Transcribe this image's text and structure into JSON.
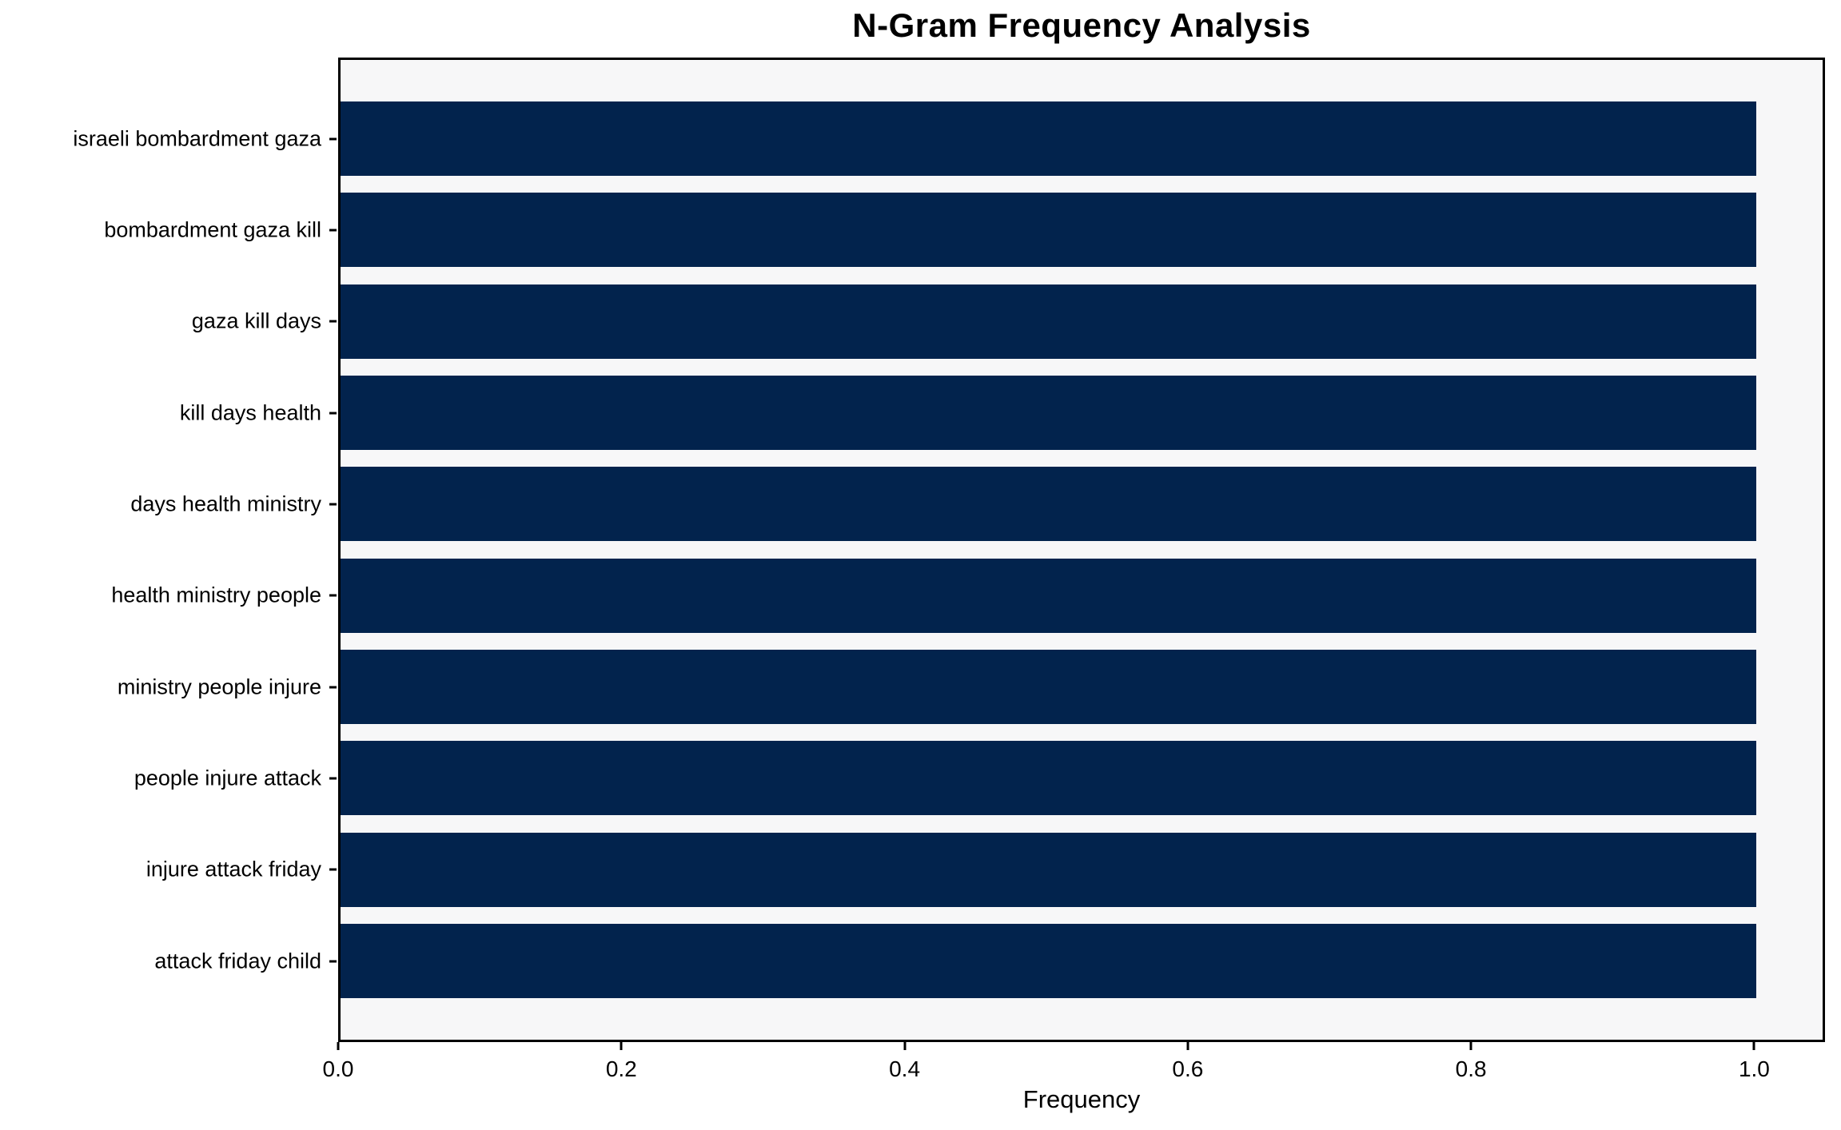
{
  "chart_data": {
    "type": "bar",
    "orientation": "horizontal",
    "title": "N-Gram Frequency Analysis",
    "xlabel": "Frequency",
    "ylabel": "",
    "categories": [
      "israeli bombardment gaza",
      "bombardment gaza kill",
      "gaza kill days",
      "kill days health",
      "days health ministry",
      "health ministry people",
      "ministry people injure",
      "people injure attack",
      "injure attack friday",
      "attack friday child"
    ],
    "values": [
      1.0,
      1.0,
      1.0,
      1.0,
      1.0,
      1.0,
      1.0,
      1.0,
      1.0,
      1.0
    ],
    "xlim": [
      0,
      1.05
    ],
    "xtick_values": [
      0.0,
      0.2,
      0.4,
      0.6,
      0.8,
      1.0
    ],
    "xtick_labels": [
      "0.0",
      "0.2",
      "0.4",
      "0.6",
      "0.8",
      "1.0"
    ],
    "grid": false,
    "legend_position": "none",
    "bar_color": "#02234d",
    "plot_background": "#f7f7f8",
    "figure_background": "#ffffff",
    "spine_color": "#000000"
  }
}
